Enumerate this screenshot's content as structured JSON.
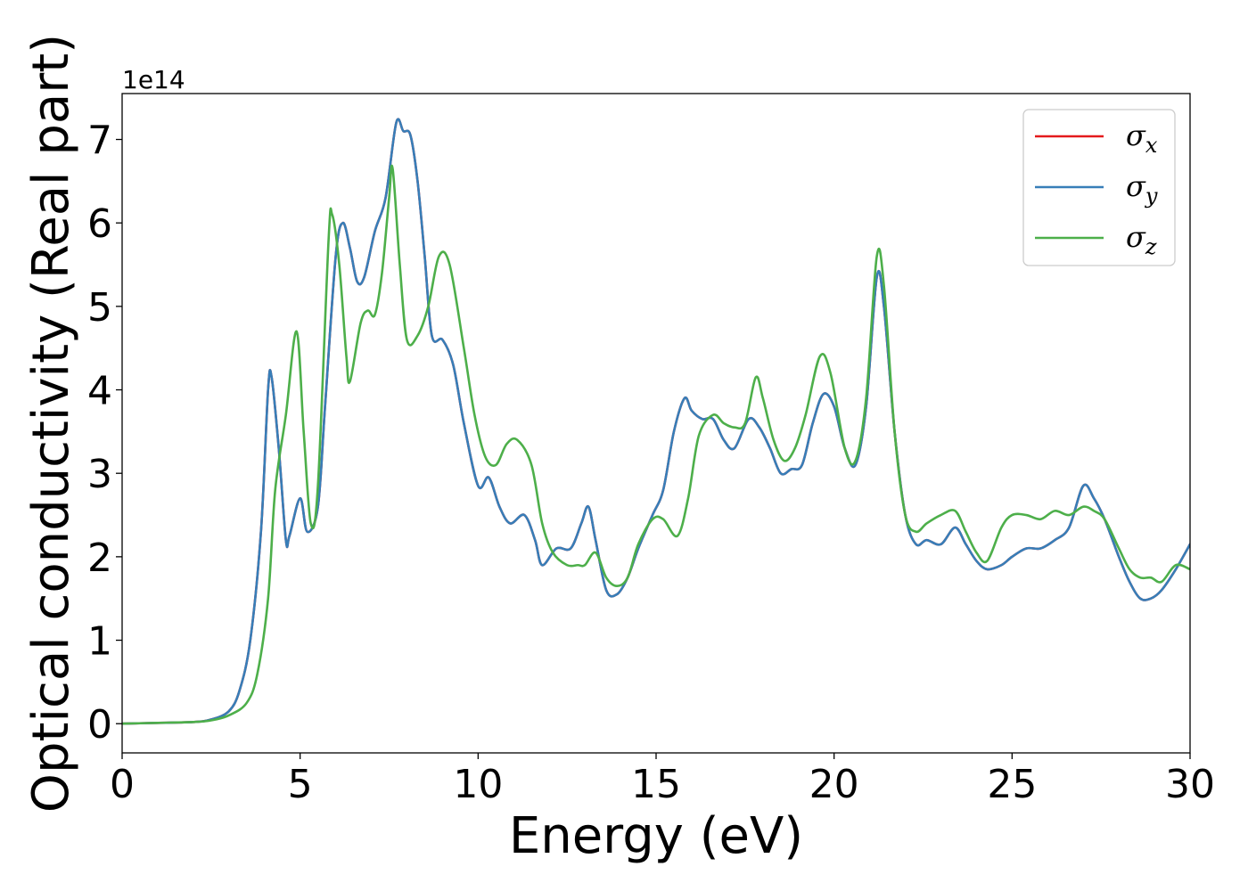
{
  "chart_data": {
    "type": "line",
    "xlabel": "Energy (eV)",
    "ylabel": "Optical conductivity (Real part)",
    "y_offset_label": "1e14",
    "xlim": [
      0,
      30
    ],
    "ylim": [
      -0.35,
      7.55
    ],
    "xticks": [
      0,
      5,
      10,
      15,
      20,
      25,
      30
    ],
    "xtick_labels": [
      "0",
      "5",
      "10",
      "15",
      "20",
      "25",
      "30"
    ],
    "yticks": [
      0,
      1,
      2,
      3,
      4,
      5,
      6,
      7
    ],
    "ytick_labels": [
      "0",
      "1",
      "2",
      "3",
      "4",
      "5",
      "6",
      "7"
    ],
    "grid": false,
    "legend_position": "top-right",
    "series": [
      {
        "name": "σx",
        "color": "#e41a1c",
        "points": [
          [
            0,
            0
          ],
          [
            1,
            0.01
          ],
          [
            2,
            0.02
          ],
          [
            2.5,
            0.05
          ],
          [
            3,
            0.15
          ],
          [
            3.3,
            0.4
          ],
          [
            3.6,
            1.0
          ],
          [
            3.9,
            2.3
          ],
          [
            4.1,
            4.0
          ],
          [
            4.2,
            4.15
          ],
          [
            4.4,
            3.3
          ],
          [
            4.6,
            2.2
          ],
          [
            4.7,
            2.25
          ],
          [
            5.0,
            2.7
          ],
          [
            5.2,
            2.3
          ],
          [
            5.5,
            2.6
          ],
          [
            5.7,
            3.8
          ],
          [
            6.0,
            5.6
          ],
          [
            6.2,
            6.0
          ],
          [
            6.4,
            5.7
          ],
          [
            6.6,
            5.3
          ],
          [
            6.8,
            5.35
          ],
          [
            7.1,
            5.9
          ],
          [
            7.4,
            6.3
          ],
          [
            7.7,
            7.2
          ],
          [
            7.9,
            7.1
          ],
          [
            8.1,
            7.05
          ],
          [
            8.3,
            6.5
          ],
          [
            8.5,
            5.6
          ],
          [
            8.7,
            4.65
          ],
          [
            9.0,
            4.6
          ],
          [
            9.3,
            4.3
          ],
          [
            9.6,
            3.6
          ],
          [
            10.0,
            2.85
          ],
          [
            10.3,
            2.95
          ],
          [
            10.6,
            2.6
          ],
          [
            10.9,
            2.4
          ],
          [
            11.3,
            2.5
          ],
          [
            11.6,
            2.2
          ],
          [
            11.8,
            1.9
          ],
          [
            12.2,
            2.1
          ],
          [
            12.6,
            2.1
          ],
          [
            12.9,
            2.4
          ],
          [
            13.1,
            2.6
          ],
          [
            13.3,
            2.2
          ],
          [
            13.6,
            1.6
          ],
          [
            13.9,
            1.55
          ],
          [
            14.2,
            1.75
          ],
          [
            14.5,
            2.1
          ],
          [
            14.9,
            2.5
          ],
          [
            15.2,
            2.8
          ],
          [
            15.5,
            3.5
          ],
          [
            15.8,
            3.9
          ],
          [
            16.0,
            3.75
          ],
          [
            16.3,
            3.65
          ],
          [
            16.6,
            3.65
          ],
          [
            16.9,
            3.4
          ],
          [
            17.2,
            3.3
          ],
          [
            17.6,
            3.65
          ],
          [
            17.9,
            3.55
          ],
          [
            18.2,
            3.3
          ],
          [
            18.5,
            3.0
          ],
          [
            18.8,
            3.05
          ],
          [
            19.1,
            3.1
          ],
          [
            19.4,
            3.6
          ],
          [
            19.7,
            3.95
          ],
          [
            20.0,
            3.8
          ],
          [
            20.3,
            3.3
          ],
          [
            20.6,
            3.1
          ],
          [
            20.9,
            3.8
          ],
          [
            21.2,
            5.35
          ],
          [
            21.4,
            5.0
          ],
          [
            21.7,
            3.5
          ],
          [
            22.0,
            2.5
          ],
          [
            22.3,
            2.15
          ],
          [
            22.6,
            2.2
          ],
          [
            23.0,
            2.15
          ],
          [
            23.4,
            2.35
          ],
          [
            23.7,
            2.15
          ],
          [
            24.0,
            1.95
          ],
          [
            24.3,
            1.85
          ],
          [
            24.7,
            1.9
          ],
          [
            25.0,
            2.0
          ],
          [
            25.4,
            2.1
          ],
          [
            25.8,
            2.1
          ],
          [
            26.2,
            2.2
          ],
          [
            26.6,
            2.35
          ],
          [
            27.0,
            2.85
          ],
          [
            27.3,
            2.7
          ],
          [
            27.6,
            2.45
          ],
          [
            28.0,
            2.0
          ],
          [
            28.3,
            1.7
          ],
          [
            28.6,
            1.5
          ],
          [
            28.9,
            1.5
          ],
          [
            29.2,
            1.6
          ],
          [
            29.6,
            1.85
          ],
          [
            30.0,
            2.15
          ]
        ]
      },
      {
        "name": "σy",
        "color": "#377eb8",
        "points": [
          [
            0,
            0
          ],
          [
            1,
            0.01
          ],
          [
            2,
            0.02
          ],
          [
            2.5,
            0.05
          ],
          [
            3,
            0.15
          ],
          [
            3.3,
            0.4
          ],
          [
            3.6,
            1.0
          ],
          [
            3.9,
            2.3
          ],
          [
            4.1,
            4.0
          ],
          [
            4.2,
            4.15
          ],
          [
            4.4,
            3.3
          ],
          [
            4.6,
            2.2
          ],
          [
            4.7,
            2.25
          ],
          [
            5.0,
            2.7
          ],
          [
            5.2,
            2.3
          ],
          [
            5.5,
            2.6
          ],
          [
            5.7,
            3.8
          ],
          [
            6.0,
            5.6
          ],
          [
            6.2,
            6.0
          ],
          [
            6.4,
            5.7
          ],
          [
            6.6,
            5.3
          ],
          [
            6.8,
            5.35
          ],
          [
            7.1,
            5.9
          ],
          [
            7.4,
            6.3
          ],
          [
            7.7,
            7.2
          ],
          [
            7.9,
            7.1
          ],
          [
            8.1,
            7.05
          ],
          [
            8.3,
            6.5
          ],
          [
            8.5,
            5.6
          ],
          [
            8.7,
            4.65
          ],
          [
            9.0,
            4.6
          ],
          [
            9.3,
            4.3
          ],
          [
            9.6,
            3.6
          ],
          [
            10.0,
            2.85
          ],
          [
            10.3,
            2.95
          ],
          [
            10.6,
            2.6
          ],
          [
            10.9,
            2.4
          ],
          [
            11.3,
            2.5
          ],
          [
            11.6,
            2.2
          ],
          [
            11.8,
            1.9
          ],
          [
            12.2,
            2.1
          ],
          [
            12.6,
            2.1
          ],
          [
            12.9,
            2.4
          ],
          [
            13.1,
            2.6
          ],
          [
            13.3,
            2.2
          ],
          [
            13.6,
            1.6
          ],
          [
            13.9,
            1.55
          ],
          [
            14.2,
            1.75
          ],
          [
            14.5,
            2.1
          ],
          [
            14.9,
            2.5
          ],
          [
            15.2,
            2.8
          ],
          [
            15.5,
            3.5
          ],
          [
            15.8,
            3.9
          ],
          [
            16.0,
            3.75
          ],
          [
            16.3,
            3.65
          ],
          [
            16.6,
            3.65
          ],
          [
            16.9,
            3.4
          ],
          [
            17.2,
            3.3
          ],
          [
            17.6,
            3.65
          ],
          [
            17.9,
            3.55
          ],
          [
            18.2,
            3.3
          ],
          [
            18.5,
            3.0
          ],
          [
            18.8,
            3.05
          ],
          [
            19.1,
            3.1
          ],
          [
            19.4,
            3.6
          ],
          [
            19.7,
            3.95
          ],
          [
            20.0,
            3.8
          ],
          [
            20.3,
            3.3
          ],
          [
            20.6,
            3.1
          ],
          [
            20.9,
            3.8
          ],
          [
            21.2,
            5.35
          ],
          [
            21.4,
            5.0
          ],
          [
            21.7,
            3.5
          ],
          [
            22.0,
            2.5
          ],
          [
            22.3,
            2.15
          ],
          [
            22.6,
            2.2
          ],
          [
            23.0,
            2.15
          ],
          [
            23.4,
            2.35
          ],
          [
            23.7,
            2.15
          ],
          [
            24.0,
            1.95
          ],
          [
            24.3,
            1.85
          ],
          [
            24.7,
            1.9
          ],
          [
            25.0,
            2.0
          ],
          [
            25.4,
            2.1
          ],
          [
            25.8,
            2.1
          ],
          [
            26.2,
            2.2
          ],
          [
            26.6,
            2.35
          ],
          [
            27.0,
            2.85
          ],
          [
            27.3,
            2.7
          ],
          [
            27.6,
            2.45
          ],
          [
            28.0,
            2.0
          ],
          [
            28.3,
            1.7
          ],
          [
            28.6,
            1.5
          ],
          [
            28.9,
            1.5
          ],
          [
            29.2,
            1.6
          ],
          [
            29.6,
            1.85
          ],
          [
            30.0,
            2.15
          ]
        ]
      },
      {
        "name": "σz",
        "color": "#4daf4a",
        "points": [
          [
            0,
            0
          ],
          [
            1,
            0.01
          ],
          [
            2,
            0.02
          ],
          [
            2.5,
            0.04
          ],
          [
            3,
            0.1
          ],
          [
            3.5,
            0.25
          ],
          [
            3.8,
            0.6
          ],
          [
            4.1,
            1.5
          ],
          [
            4.3,
            2.8
          ],
          [
            4.6,
            3.7
          ],
          [
            4.9,
            4.7
          ],
          [
            5.1,
            3.5
          ],
          [
            5.3,
            2.4
          ],
          [
            5.5,
            2.85
          ],
          [
            5.8,
            5.8
          ],
          [
            5.9,
            6.1
          ],
          [
            6.1,
            5.5
          ],
          [
            6.3,
            4.4
          ],
          [
            6.4,
            4.1
          ],
          [
            6.7,
            4.8
          ],
          [
            6.9,
            4.95
          ],
          [
            7.1,
            4.9
          ],
          [
            7.3,
            5.4
          ],
          [
            7.5,
            6.3
          ],
          [
            7.6,
            6.65
          ],
          [
            7.8,
            5.5
          ],
          [
            8.0,
            4.6
          ],
          [
            8.3,
            4.65
          ],
          [
            8.6,
            5.0
          ],
          [
            8.9,
            5.6
          ],
          [
            9.2,
            5.5
          ],
          [
            9.6,
            4.5
          ],
          [
            9.9,
            3.7
          ],
          [
            10.2,
            3.2
          ],
          [
            10.5,
            3.1
          ],
          [
            10.8,
            3.35
          ],
          [
            11.1,
            3.4
          ],
          [
            11.5,
            3.1
          ],
          [
            11.8,
            2.4
          ],
          [
            12.1,
            2.05
          ],
          [
            12.5,
            1.9
          ],
          [
            12.8,
            1.9
          ],
          [
            13.0,
            1.9
          ],
          [
            13.3,
            2.05
          ],
          [
            13.6,
            1.75
          ],
          [
            13.9,
            1.65
          ],
          [
            14.2,
            1.75
          ],
          [
            14.5,
            2.15
          ],
          [
            14.9,
            2.45
          ],
          [
            15.2,
            2.45
          ],
          [
            15.6,
            2.25
          ],
          [
            15.9,
            2.7
          ],
          [
            16.2,
            3.45
          ],
          [
            16.6,
            3.7
          ],
          [
            16.9,
            3.6
          ],
          [
            17.2,
            3.55
          ],
          [
            17.5,
            3.6
          ],
          [
            17.8,
            4.15
          ],
          [
            18.0,
            3.9
          ],
          [
            18.3,
            3.4
          ],
          [
            18.6,
            3.15
          ],
          [
            18.9,
            3.3
          ],
          [
            19.2,
            3.7
          ],
          [
            19.6,
            4.4
          ],
          [
            19.9,
            4.2
          ],
          [
            20.3,
            3.3
          ],
          [
            20.6,
            3.15
          ],
          [
            20.9,
            3.9
          ],
          [
            21.2,
            5.6
          ],
          [
            21.4,
            5.25
          ],
          [
            21.7,
            3.5
          ],
          [
            22.0,
            2.5
          ],
          [
            22.3,
            2.3
          ],
          [
            22.6,
            2.4
          ],
          [
            23.0,
            2.5
          ],
          [
            23.4,
            2.55
          ],
          [
            23.7,
            2.3
          ],
          [
            24.0,
            2.05
          ],
          [
            24.3,
            1.95
          ],
          [
            24.7,
            2.35
          ],
          [
            25.0,
            2.5
          ],
          [
            25.4,
            2.5
          ],
          [
            25.8,
            2.45
          ],
          [
            26.2,
            2.55
          ],
          [
            26.6,
            2.5
          ],
          [
            27.0,
            2.6
          ],
          [
            27.3,
            2.55
          ],
          [
            27.6,
            2.45
          ],
          [
            28.0,
            2.1
          ],
          [
            28.3,
            1.85
          ],
          [
            28.6,
            1.75
          ],
          [
            28.9,
            1.75
          ],
          [
            29.2,
            1.7
          ],
          [
            29.6,
            1.9
          ],
          [
            30.0,
            1.85
          ]
        ]
      }
    ]
  }
}
